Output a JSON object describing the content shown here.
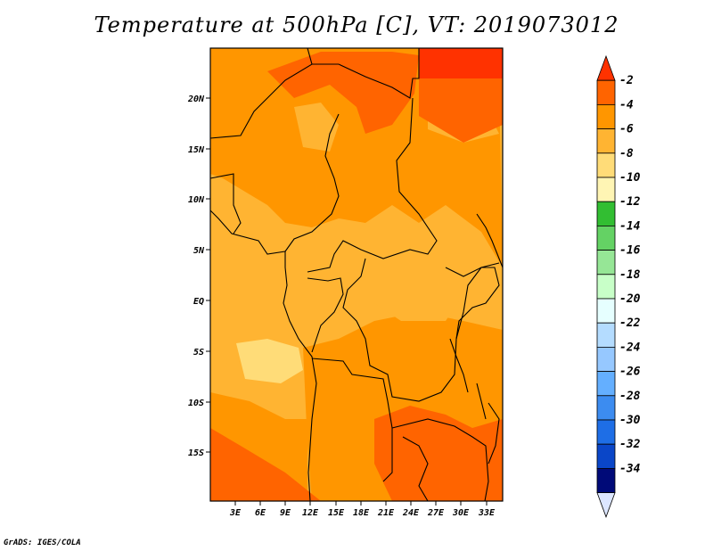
{
  "title": "Temperature at 500hPa [C], VT: 2019073012",
  "footer": "GrADS: IGES/COLA",
  "map": {
    "lat_labels": [
      "20N",
      "15N",
      "10N",
      "5N",
      "EQ",
      "5S",
      "10S",
      "15S"
    ],
    "lon_labels": [
      "3E",
      "6E",
      "9E",
      "12E",
      "15E",
      "18E",
      "21E",
      "24E",
      "27E",
      "30E",
      "33E"
    ]
  },
  "colorbar": {
    "labels": [
      "-2",
      "-4",
      "-6",
      "-8",
      "-10",
      "-12",
      "-14",
      "-16",
      "-18",
      "-20",
      "-22",
      "-24",
      "-26",
      "-28",
      "-30",
      "-32",
      "-34"
    ],
    "colors": [
      "#ff3200",
      "#ff6400",
      "#ff9600",
      "#ffb432",
      "#ffdc78",
      "#fff5b4",
      "#32be32",
      "#64d264",
      "#96e696",
      "#c8ffc8",
      "#e6ffff",
      "#b4dcff",
      "#96c8ff",
      "#64afff",
      "#3c8cf0",
      "#1e6ee6",
      "#0a46c8",
      "#000a78",
      "#dce6ff"
    ]
  }
}
